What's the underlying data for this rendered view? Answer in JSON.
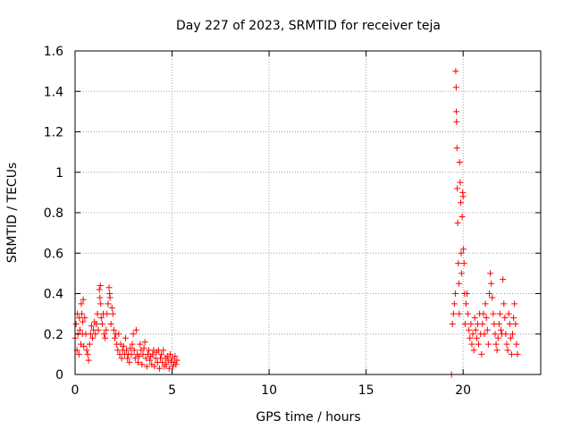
{
  "chart_data": {
    "type": "scatter",
    "title": "Day 227 of 2023, SRMTID for receiver teja",
    "xlabel": "GPS time / hours",
    "ylabel": "SRMTID / TECUs",
    "xlim": [
      0,
      24
    ],
    "ylim": [
      0,
      1.6
    ],
    "xticks": [
      0,
      5,
      10,
      15,
      20
    ],
    "xtick_labels": [
      "0",
      "5",
      "10",
      "15",
      "20"
    ],
    "yticks": [
      0,
      0.2,
      0.4,
      0.6,
      0.8,
      1,
      1.2,
      1.4,
      1.6
    ],
    "ytick_labels": [
      "0",
      "0.2",
      "0.4",
      "0.6",
      "0.8",
      "1",
      "1.2",
      "1.4",
      "1.6"
    ],
    "grid": true,
    "marker": "+",
    "color": "#ff0000",
    "series": [
      {
        "name": "SRMTID",
        "points": [
          [
            0.0,
            0.18
          ],
          [
            0.05,
            0.25
          ],
          [
            0.1,
            0.12
          ],
          [
            0.12,
            0.3
          ],
          [
            0.15,
            0.2
          ],
          [
            0.2,
            0.1
          ],
          [
            0.22,
            0.28
          ],
          [
            0.25,
            0.22
          ],
          [
            0.3,
            0.15
          ],
          [
            0.32,
            0.35
          ],
          [
            0.35,
            0.3
          ],
          [
            0.38,
            0.2
          ],
          [
            0.4,
            0.26
          ],
          [
            0.42,
            0.37
          ],
          [
            0.45,
            0.14
          ],
          [
            0.5,
            0.28
          ],
          [
            0.55,
            0.2
          ],
          [
            0.6,
            0.12
          ],
          [
            0.65,
            0.1
          ],
          [
            0.7,
            0.07
          ],
          [
            0.75,
            0.15
          ],
          [
            0.8,
            0.2
          ],
          [
            0.85,
            0.24
          ],
          [
            0.9,
            0.18
          ],
          [
            0.95,
            0.22
          ],
          [
            1.0,
            0.26
          ],
          [
            1.05,
            0.2
          ],
          [
            1.1,
            0.25
          ],
          [
            1.15,
            0.3
          ],
          [
            1.2,
            0.22
          ],
          [
            1.25,
            0.42
          ],
          [
            1.28,
            0.38
          ],
          [
            1.3,
            0.44
          ],
          [
            1.32,
            0.35
          ],
          [
            1.35,
            0.28
          ],
          [
            1.4,
            0.25
          ],
          [
            1.45,
            0.3
          ],
          [
            1.5,
            0.2
          ],
          [
            1.55,
            0.18
          ],
          [
            1.6,
            0.22
          ],
          [
            1.65,
            0.3
          ],
          [
            1.7,
            0.35
          ],
          [
            1.75,
            0.43
          ],
          [
            1.78,
            0.4
          ],
          [
            1.8,
            0.38
          ],
          [
            1.85,
            0.25
          ],
          [
            1.9,
            0.33
          ],
          [
            1.95,
            0.3
          ],
          [
            2.0,
            0.22
          ],
          [
            2.05,
            0.18
          ],
          [
            2.1,
            0.2
          ],
          [
            2.15,
            0.15
          ],
          [
            2.2,
            0.12
          ],
          [
            2.25,
            0.2
          ],
          [
            2.3,
            0.1
          ],
          [
            2.35,
            0.15
          ],
          [
            2.4,
            0.08
          ],
          [
            2.45,
            0.12
          ],
          [
            2.5,
            0.14
          ],
          [
            2.55,
            0.1
          ],
          [
            2.6,
            0.18
          ],
          [
            2.65,
            0.12
          ],
          [
            2.7,
            0.08
          ],
          [
            2.75,
            0.1
          ],
          [
            2.8,
            0.06
          ],
          [
            2.85,
            0.13
          ],
          [
            2.9,
            0.1
          ],
          [
            2.95,
            0.15
          ],
          [
            3.0,
            0.2
          ],
          [
            3.05,
            0.12
          ],
          [
            3.1,
            0.08
          ],
          [
            3.15,
            0.22
          ],
          [
            3.2,
            0.1
          ],
          [
            3.25,
            0.06
          ],
          [
            3.3,
            0.09
          ],
          [
            3.35,
            0.15
          ],
          [
            3.4,
            0.12
          ],
          [
            3.45,
            0.05
          ],
          [
            3.5,
            0.1
          ],
          [
            3.55,
            0.13
          ],
          [
            3.6,
            0.16
          ],
          [
            3.65,
            0.08
          ],
          [
            3.7,
            0.04
          ],
          [
            3.75,
            0.1
          ],
          [
            3.8,
            0.12
          ],
          [
            3.85,
            0.07
          ],
          [
            3.9,
            0.09
          ],
          [
            3.95,
            0.05
          ],
          [
            4.0,
            0.1
          ],
          [
            4.05,
            0.12
          ],
          [
            4.1,
            0.04
          ],
          [
            4.15,
            0.08
          ],
          [
            4.2,
            0.11
          ],
          [
            4.25,
            0.06
          ],
          [
            4.3,
            0.12
          ],
          [
            4.35,
            0.03
          ],
          [
            4.4,
            0.08
          ],
          [
            4.45,
            0.1
          ],
          [
            4.5,
            0.06
          ],
          [
            4.55,
            0.12
          ],
          [
            4.6,
            0.04
          ],
          [
            4.65,
            0.08
          ],
          [
            4.7,
            0.05
          ],
          [
            4.75,
            0.09
          ],
          [
            4.8,
            0.07
          ],
          [
            4.85,
            0.03
          ],
          [
            4.9,
            0.1
          ],
          [
            4.95,
            0.06
          ],
          [
            5.0,
            0.08
          ],
          [
            5.05,
            0.04
          ],
          [
            5.1,
            0.06
          ],
          [
            5.15,
            0.09
          ],
          [
            5.2,
            0.05
          ],
          [
            5.25,
            0.07
          ],
          [
            19.4,
            0.0
          ],
          [
            19.45,
            0.25
          ],
          [
            19.5,
            0.3
          ],
          [
            19.55,
            0.35
          ],
          [
            19.6,
            0.4
          ],
          [
            19.62,
            1.5
          ],
          [
            19.64,
            1.42
          ],
          [
            19.65,
            1.3
          ],
          [
            19.66,
            1.25
          ],
          [
            19.68,
            1.12
          ],
          [
            19.7,
            0.92
          ],
          [
            19.72,
            0.75
          ],
          [
            19.75,
            0.55
          ],
          [
            19.78,
            0.45
          ],
          [
            19.8,
            0.3
          ],
          [
            19.82,
            1.05
          ],
          [
            19.85,
            0.95
          ],
          [
            19.88,
            0.85
          ],
          [
            19.9,
            0.6
          ],
          [
            19.92,
            0.5
          ],
          [
            19.95,
            0.78
          ],
          [
            19.98,
            0.9
          ],
          [
            20.0,
            0.88
          ],
          [
            20.02,
            0.62
          ],
          [
            20.05,
            0.55
          ],
          [
            20.08,
            0.4
          ],
          [
            20.1,
            0.25
          ],
          [
            20.15,
            0.35
          ],
          [
            20.2,
            0.4
          ],
          [
            20.25,
            0.3
          ],
          [
            20.3,
            0.22
          ],
          [
            20.35,
            0.18
          ],
          [
            20.4,
            0.25
          ],
          [
            20.45,
            0.15
          ],
          [
            20.5,
            0.2
          ],
          [
            20.55,
            0.12
          ],
          [
            20.6,
            0.28
          ],
          [
            20.65,
            0.22
          ],
          [
            20.7,
            0.18
          ],
          [
            20.75,
            0.25
          ],
          [
            20.8,
            0.15
          ],
          [
            20.85,
            0.3
          ],
          [
            20.9,
            0.2
          ],
          [
            20.95,
            0.1
          ],
          [
            21.0,
            0.25
          ],
          [
            21.05,
            0.3
          ],
          [
            21.1,
            0.2
          ],
          [
            21.15,
            0.35
          ],
          [
            21.2,
            0.28
          ],
          [
            21.25,
            0.22
          ],
          [
            21.3,
            0.15
          ],
          [
            21.35,
            0.4
          ],
          [
            21.4,
            0.5
          ],
          [
            21.45,
            0.45
          ],
          [
            21.5,
            0.38
          ],
          [
            21.55,
            0.3
          ],
          [
            21.6,
            0.25
          ],
          [
            21.65,
            0.2
          ],
          [
            21.7,
            0.15
          ],
          [
            21.75,
            0.12
          ],
          [
            21.8,
            0.18
          ],
          [
            21.85,
            0.25
          ],
          [
            21.9,
            0.3
          ],
          [
            21.95,
            0.22
          ],
          [
            22.0,
            0.2
          ],
          [
            22.05,
            0.47
          ],
          [
            22.1,
            0.35
          ],
          [
            22.15,
            0.28
          ],
          [
            22.2,
            0.2
          ],
          [
            22.25,
            0.15
          ],
          [
            22.3,
            0.12
          ],
          [
            22.35,
            0.3
          ],
          [
            22.4,
            0.25
          ],
          [
            22.45,
            0.18
          ],
          [
            22.5,
            0.1
          ],
          [
            22.55,
            0.2
          ],
          [
            22.6,
            0.28
          ],
          [
            22.65,
            0.35
          ],
          [
            22.7,
            0.25
          ],
          [
            22.75,
            0.15
          ],
          [
            22.8,
            0.1
          ]
        ]
      }
    ]
  }
}
